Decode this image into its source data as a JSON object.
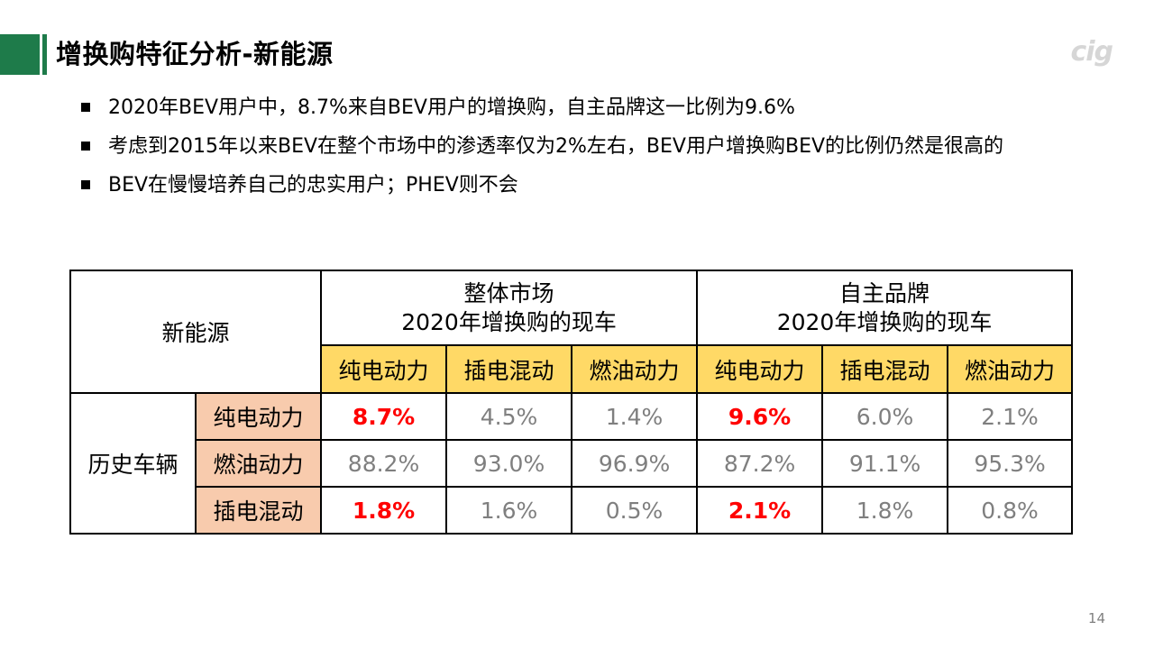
{
  "header": {
    "title": "增换购特征分析-新能源",
    "logo_text": "cig"
  },
  "bullets": [
    "2020年BEV用户中，8.7%来自BEV用户的增换购，自主品牌这一比例为9.6%",
    "考虑到2015年以来BEV在整个市场中的渗透率仅为2%左右，BEV用户增换购BEV的比例仍然是很高的",
    "BEV在慢慢培养自己的忠实用户；PHEV则不会"
  ],
  "table": {
    "corner": "新能源",
    "group_headers": [
      {
        "line1": "整体市场",
        "line2": "2020年增换购的现车"
      },
      {
        "line1": "自主品牌",
        "line2": "2020年增换购的现车"
      }
    ],
    "sub_headers": [
      "纯电动力",
      "插电混动",
      "燃油动力",
      "纯电动力",
      "插电混动",
      "燃油动力"
    ],
    "row_group": "历史车辆",
    "rows": [
      {
        "label": "纯电动力",
        "values": [
          "8.7%",
          "4.5%",
          "1.4%",
          "9.6%",
          "6.0%",
          "2.1%"
        ]
      },
      {
        "label": "燃油动力",
        "values": [
          "88.2%",
          "93.0%",
          "96.9%",
          "87.2%",
          "91.1%",
          "95.3%"
        ]
      },
      {
        "label": "插电混动",
        "values": [
          "1.8%",
          "1.6%",
          "0.5%",
          "2.1%",
          "1.8%",
          "0.8%"
        ]
      }
    ]
  },
  "colors": {
    "accent_green": "#1e7b4a",
    "header_yellow": "#ffd966",
    "row_label_peach": "#f8cbad",
    "highlight_red": "#ff0000",
    "value_gray": "#7f7f7f"
  },
  "footer": {
    "page_number": "14"
  }
}
